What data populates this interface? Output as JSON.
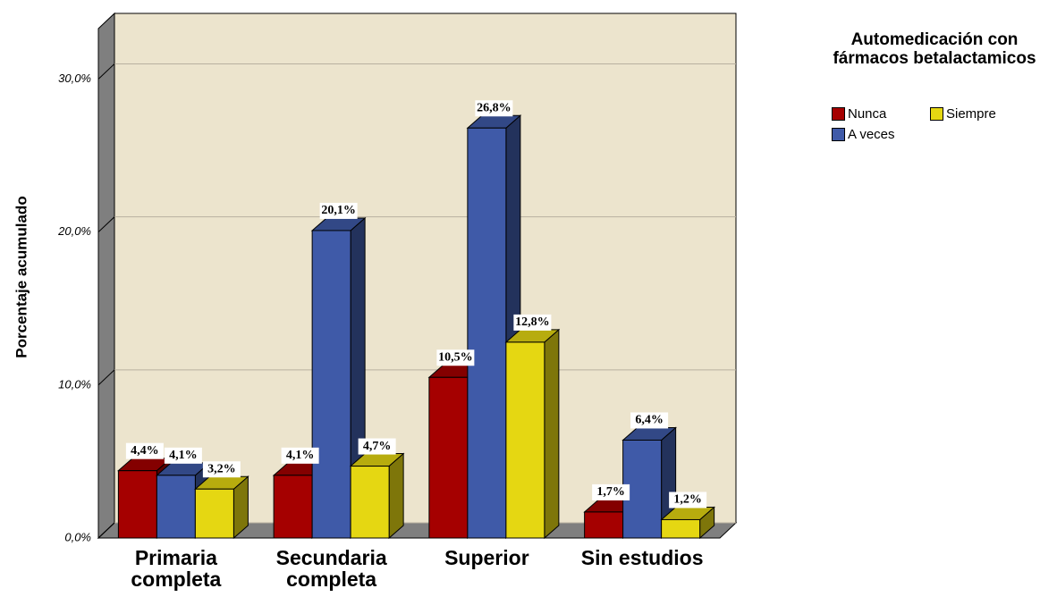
{
  "chart_data": {
    "type": "bar3d",
    "y_label": "Porcentaje acumulado",
    "legend_title": "Automedicación con fármacos betalactamicos",
    "categories": [
      "Primaria completa",
      "Secundaria completa",
      "Superior",
      "Sin estudios"
    ],
    "series": [
      {
        "name": "Nunca",
        "color": "#a50000",
        "values": [
          4.4,
          4.1,
          10.5,
          1.7
        ],
        "value_labels": [
          "4,4%",
          "4,1%",
          "10,5%",
          "1,7%"
        ]
      },
      {
        "name": "A veces",
        "color": "#3f5aa8",
        "values": [
          4.1,
          20.1,
          26.8,
          6.4
        ],
        "value_labels": [
          "4,1%",
          "20,1%",
          "26,8%",
          "6,4%"
        ]
      },
      {
        "name": "Siempre",
        "color": "#e5d712",
        "values": [
          3.2,
          4.7,
          12.8,
          1.2
        ],
        "value_labels": [
          "3,2%",
          "4,7%",
          "12,8%",
          "1,2%"
        ]
      }
    ],
    "ylim": [
      0,
      33.3
    ],
    "yticks": [
      {
        "value": 0,
        "label": "0,0%"
      },
      {
        "value": 10,
        "label": "10,0%"
      },
      {
        "value": 20,
        "label": "20,0%"
      },
      {
        "value": 30,
        "label": "30,0%"
      }
    ],
    "grid": true
  }
}
